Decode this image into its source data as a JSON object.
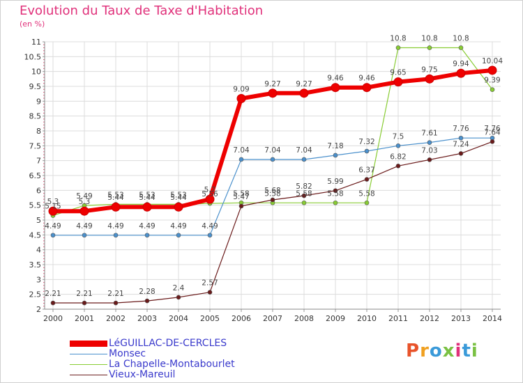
{
  "title": "Evolution du Taux de Taxe d'Habitation",
  "subtitle": "(en %)",
  "logo": {
    "text": "Proxiti",
    "colors": [
      "#e8532a",
      "#f0a020",
      "#3a9ad9",
      "#7ac143",
      "#e0307a",
      "#3a9ad9",
      "#7ac143"
    ]
  },
  "chart_data": {
    "type": "line",
    "x": [
      "2000",
      "2001",
      "2002",
      "2003",
      "2004",
      "2005",
      "2006",
      "2007",
      "2008",
      "2009",
      "2010",
      "2011",
      "2012",
      "2013",
      "2014"
    ],
    "ylim": [
      2,
      11
    ],
    "yticks": [
      "2",
      "2.5",
      "3",
      "3.5",
      "4",
      "4.5",
      "5",
      "5.5",
      "6",
      "6.5",
      "7",
      "7.5",
      "8",
      "8.5",
      "9",
      "9.5",
      "10",
      "10.5",
      "11"
    ],
    "grid": true,
    "legend_placement": "bottom-left",
    "series": [
      {
        "name": "LéGUILLAC-DE-CERCLES",
        "color": "#ee0000",
        "width": 5,
        "values": [
          5.3,
          5.3,
          5.44,
          5.44,
          5.44,
          5.7,
          9.09,
          9.27,
          9.27,
          9.46,
          9.46,
          9.65,
          9.75,
          9.94,
          10.04
        ],
        "labels": [
          "5.3",
          "5.3",
          "5.44",
          "5.44",
          "5.44",
          "5.7",
          "9.09",
          "9.27",
          "9.27",
          "9.46",
          "9.46",
          "9.65",
          "9.75",
          "9.94",
          "10.04"
        ]
      },
      {
        "name": "Monsec",
        "color": "#4a90cc",
        "width": 1,
        "values": [
          4.49,
          4.49,
          4.49,
          4.49,
          4.49,
          4.49,
          7.04,
          7.04,
          7.04,
          7.18,
          7.32,
          7.5,
          7.61,
          7.76,
          7.76
        ],
        "labels": [
          "4.49",
          "4.49",
          "4.49",
          "4.49",
          "4.49",
          "4.49",
          "7.04",
          "7.04",
          "7.04",
          "7.18",
          "7.32",
          "7.5",
          "7.61",
          "7.76",
          "7.76"
        ]
      },
      {
        "name": "La Chapelle-Montabourlet",
        "color": "#88cc33",
        "width": 1,
        "values": [
          5.15,
          5.49,
          5.53,
          5.53,
          5.53,
          5.56,
          5.58,
          5.58,
          5.58,
          5.58,
          5.58,
          10.8,
          10.8,
          10.8,
          9.39
        ],
        "labels": [
          "5.15",
          "5.49",
          "5.53",
          "5.53",
          "5.53",
          "5.56",
          "5.58",
          "5.58",
          "5.58",
          "5.58",
          "5.58",
          "10.8",
          "10.8",
          "10.8",
          "9.39"
        ]
      },
      {
        "name": "Vieux-Mareuil",
        "color": "#6a1a1a",
        "width": 1,
        "values": [
          2.21,
          2.21,
          2.21,
          2.28,
          2.4,
          2.57,
          5.47,
          5.68,
          5.82,
          5.99,
          6.37,
          6.82,
          7.03,
          7.24,
          7.64
        ],
        "labels": [
          "2.21",
          "2.21",
          "2.21",
          "2.28",
          "2.4",
          "2.57",
          "5.47",
          "5.68",
          "5.82",
          "5.99",
          "6.37",
          "6.82",
          "7.03",
          "7.24",
          "7.64"
        ]
      }
    ]
  }
}
